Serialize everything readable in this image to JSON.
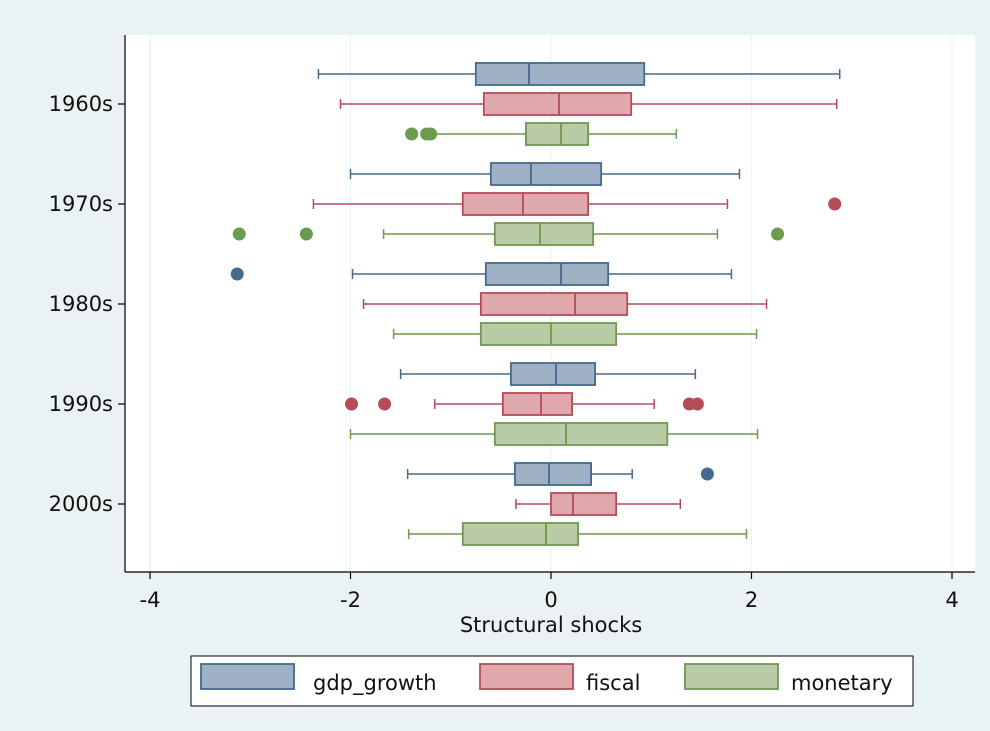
{
  "colors": {
    "outer_background": "#eaf2f3",
    "plot_background": "#ffffff",
    "axis": "#000000",
    "grid": "#eaf2f3"
  },
  "chart_data": {
    "type": "box",
    "orientation": "horizontal",
    "title": "",
    "xlabel": "Structural shocks",
    "ylabel": "",
    "xlim": [
      -4.25,
      4.25
    ],
    "x_ticks": [
      -4,
      -2,
      0,
      2,
      4
    ],
    "x_tick_labels": [
      "-4",
      "-2",
      "0",
      "2",
      "4"
    ],
    "grid": true,
    "legend_position": "bottom",
    "categories": [
      "1960s",
      "1970s",
      "1980s",
      "1990s",
      "2000s"
    ],
    "series": [
      {
        "name": "gdp_growth",
        "fill": "#9fb2c5",
        "stroke": "#46698e",
        "boxes": [
          {
            "whisker_low": -2.32,
            "q1": -0.75,
            "median": -0.22,
            "q3": 0.93,
            "whisker_high": 2.88,
            "outliers": []
          },
          {
            "whisker_low": -2.0,
            "q1": -0.6,
            "median": -0.2,
            "q3": 0.5,
            "whisker_high": 1.88,
            "outliers": []
          },
          {
            "whisker_low": -1.98,
            "q1": -0.65,
            "median": 0.1,
            "q3": 0.57,
            "whisker_high": 1.8,
            "outliers": [
              -3.13
            ]
          },
          {
            "whisker_low": -1.5,
            "q1": -0.4,
            "median": 0.05,
            "q3": 0.44,
            "whisker_high": 1.44,
            "outliers": []
          },
          {
            "whisker_low": -1.43,
            "q1": -0.36,
            "median": -0.02,
            "q3": 0.4,
            "whisker_high": 0.81,
            "outliers": [
              1.56
            ]
          }
        ]
      },
      {
        "name": "fiscal",
        "fill": "#dfa9ae",
        "stroke": "#b54c57",
        "boxes": [
          {
            "whisker_low": -2.1,
            "q1": -0.67,
            "median": 0.08,
            "q3": 0.8,
            "whisker_high": 2.85,
            "outliers": []
          },
          {
            "whisker_low": -2.37,
            "q1": -0.88,
            "median": -0.28,
            "q3": 0.37,
            "whisker_high": 1.76,
            "outliers": [
              2.83
            ]
          },
          {
            "whisker_low": -1.87,
            "q1": -0.7,
            "median": 0.24,
            "q3": 0.76,
            "whisker_high": 2.15,
            "outliers": []
          },
          {
            "whisker_low": -1.16,
            "q1": -0.48,
            "median": -0.1,
            "q3": 0.21,
            "whisker_high": 1.03,
            "outliers": [
              -1.99,
              -1.66,
              1.38,
              1.46
            ]
          },
          {
            "whisker_low": -0.35,
            "q1": 0.0,
            "median": 0.22,
            "q3": 0.65,
            "whisker_high": 1.29,
            "outliers": []
          }
        ]
      },
      {
        "name": "monetary",
        "fill": "#b8cba6",
        "stroke": "#6d9a4e",
        "boxes": [
          {
            "whisker_low": -1.18,
            "q1": -0.25,
            "median": 0.1,
            "q3": 0.37,
            "whisker_high": 1.25,
            "outliers": [
              -1.39,
              -1.24,
              -1.2
            ]
          },
          {
            "whisker_low": -1.67,
            "q1": -0.56,
            "median": -0.11,
            "q3": 0.42,
            "whisker_high": 1.66,
            "outliers": [
              -3.11,
              -2.44,
              2.26
            ]
          },
          {
            "whisker_low": -1.57,
            "q1": -0.7,
            "median": 0.0,
            "q3": 0.65,
            "whisker_high": 2.05,
            "outliers": []
          },
          {
            "whisker_low": -2.0,
            "q1": -0.56,
            "median": 0.15,
            "q3": 1.16,
            "whisker_high": 2.06,
            "outliers": []
          },
          {
            "whisker_low": -1.42,
            "q1": -0.88,
            "median": -0.05,
            "q3": 0.27,
            "whisker_high": 1.95,
            "outliers": []
          }
        ]
      }
    ]
  }
}
